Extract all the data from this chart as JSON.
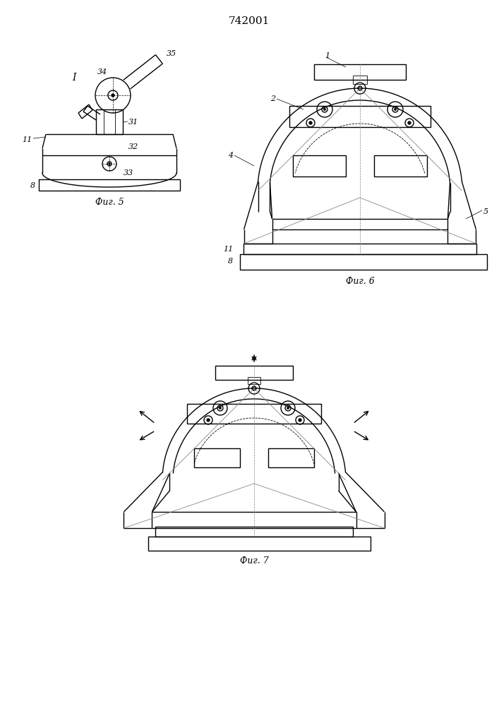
{
  "title": "742001",
  "title_fontsize": 11,
  "fig5_label": "Фиг. 5",
  "fig6_label": "Фиг. 6",
  "fig7_label": "Фиг. 7",
  "line_color": "#000000",
  "bg_color": "#ffffff",
  "label_fontsize": 8,
  "fig_label_fontsize": 9,
  "lw_main": 1.0,
  "lw_thin": 0.6,
  "lw_dashed": 0.5
}
